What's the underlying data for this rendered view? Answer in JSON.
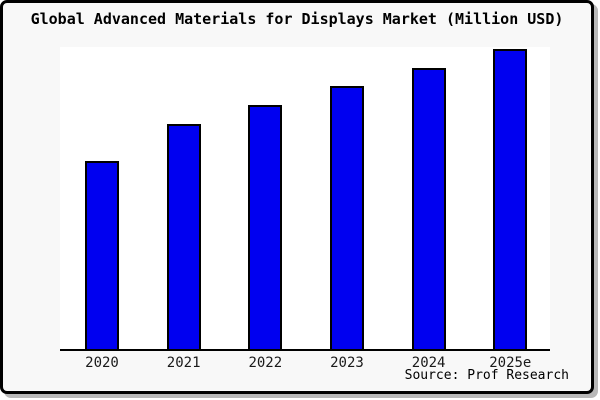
{
  "title": "Global Advanced Materials for Displays Market (Million USD)",
  "source": {
    "text": "Source: Prof Research"
  },
  "colors": {
    "bar_fill": "#0000f0",
    "bar_border": "#000000",
    "figure_bg": "#f8f8f8",
    "plot_bg": "#ffffff",
    "outer_border": "#000000",
    "axis_line": "#000000"
  },
  "chart_data": {
    "type": "bar",
    "title": "Global Advanced Materials for Displays Market (Million USD)",
    "categories": [
      "2020",
      "2021",
      "2022",
      "2023",
      "2024",
      "2025e"
    ],
    "values": [
      62.7,
      75.0,
      81.3,
      87.7,
      93.7,
      100.0
    ],
    "value_scale": "relative (tallest bar 2025e = 100); chart shows no y-axis tick labels",
    "xlabel": "",
    "ylabel": "",
    "ylim": [
      0,
      101
    ],
    "grid": false,
    "legend": false,
    "y_axis_labeled": false,
    "source_note": "Source: Prof Research"
  }
}
